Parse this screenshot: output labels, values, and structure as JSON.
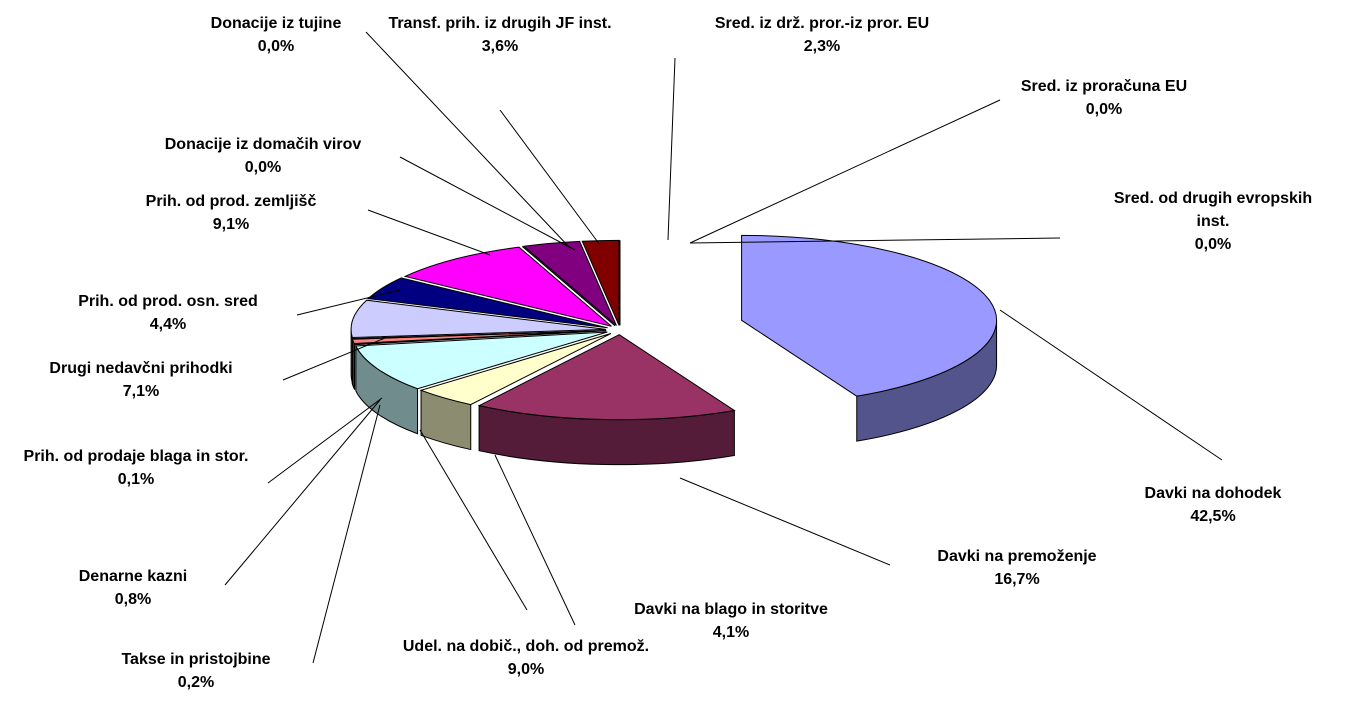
{
  "chart_data": {
    "type": "pie3d",
    "categories": [
      "Davki na dohodek",
      "Davki na premoženje",
      "Davki na blago in storitve",
      "Udel. na dobič., doh. od premož.",
      "Takse in pristojbine",
      "Denarne kazni",
      "Prih. od prodaje blaga in stor.",
      "Drugi nedavčni prihodki",
      "Prih. od prod. osn. sred",
      "Prih. od prod. zemljišč",
      "Donacije iz domačih virov",
      "Donacije iz tujine",
      "Transf. prih. iz drugih JF inst.",
      "Sred. iz drž. pror.-iz pror. EU",
      "Sred. iz proračuna EU",
      "Sred. od drugih evropskih inst."
    ],
    "values": [
      42.5,
      16.7,
      4.1,
      9.0,
      0.2,
      0.8,
      0.1,
      7.1,
      4.4,
      9.1,
      0.0,
      0.0,
      3.6,
      2.3,
      0.0,
      0.0
    ],
    "value_labels": [
      "42,5%",
      "16,7%",
      "4,1%",
      "9,0%",
      "0,2%",
      "0,8%",
      "0,1%",
      "7,1%",
      "4,4%",
      "9,1%",
      "0,0%",
      "0,0%",
      "3,6%",
      "2,3%",
      "0,0%",
      "0,0%"
    ],
    "colors": [
      "#9999ff",
      "#993366",
      "#ffffcc",
      "#ccffff",
      "#660066",
      "#ff8080",
      "#0066cc",
      "#ccccff",
      "#000080",
      "#ff00ff",
      "#ffff00",
      "#00ffff",
      "#800080",
      "#800000",
      "#008080",
      "#0000ff"
    ]
  }
}
